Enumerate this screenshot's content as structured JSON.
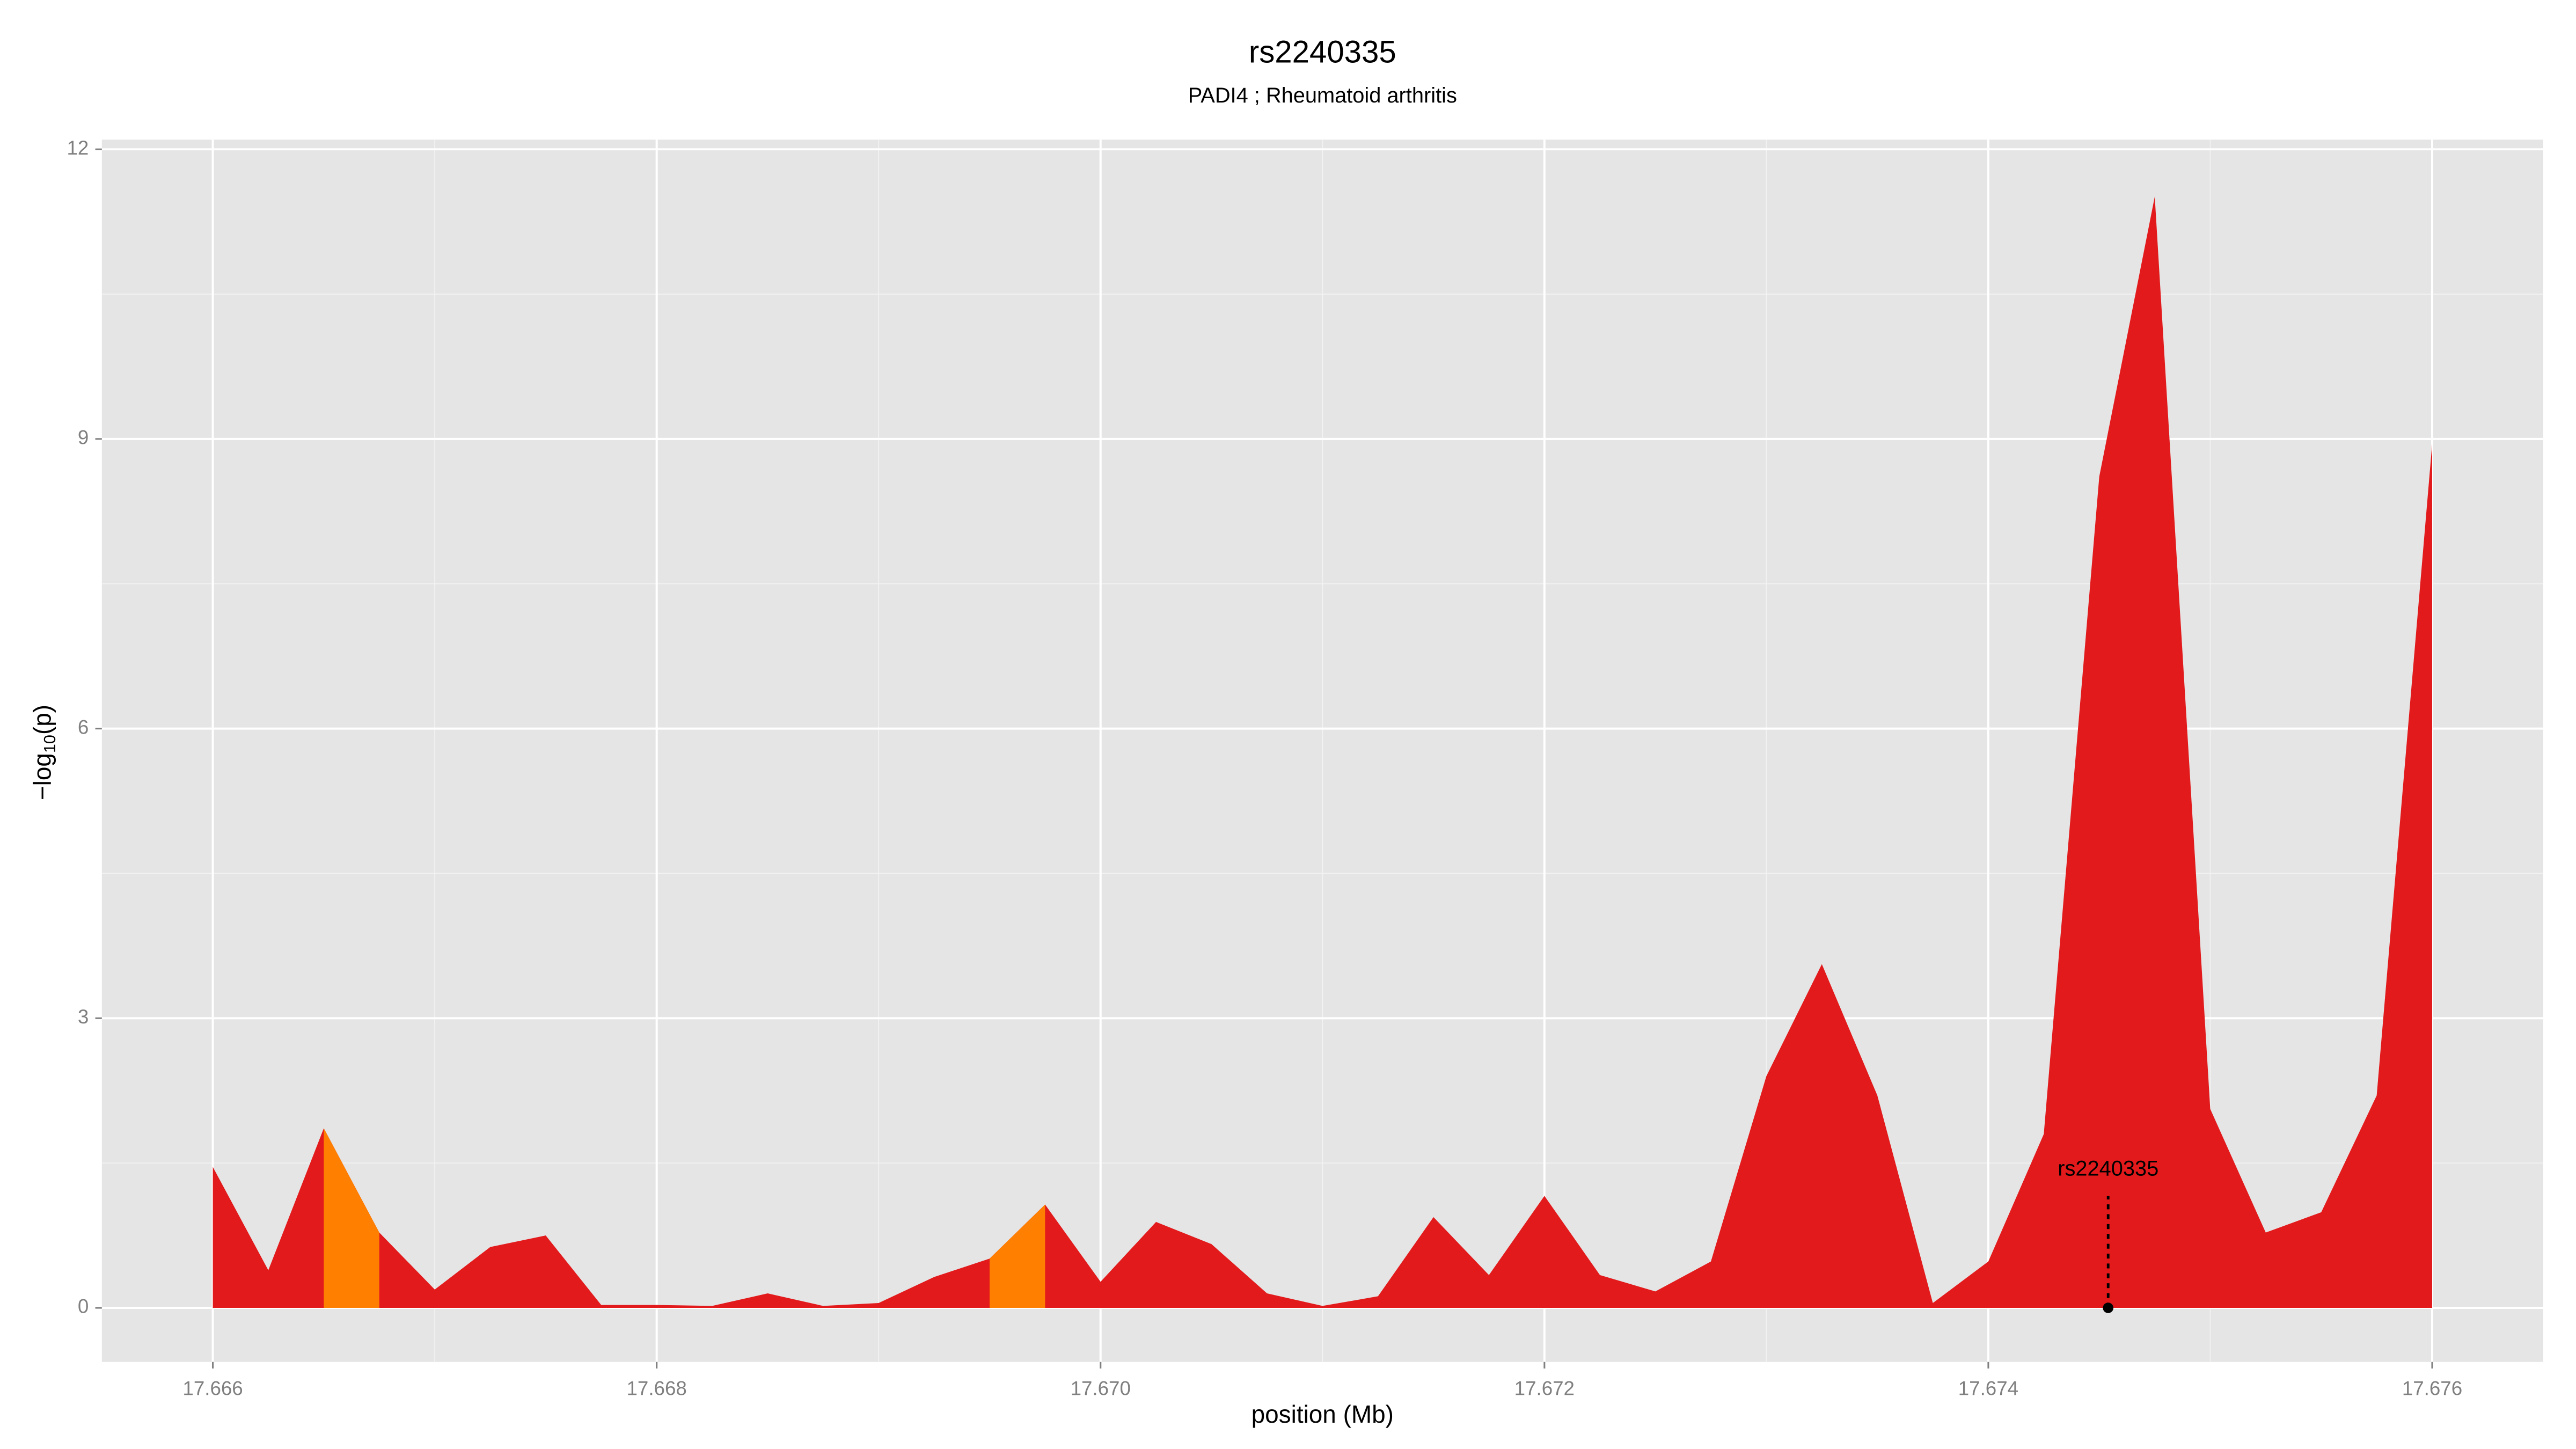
{
  "chart_data": {
    "type": "area",
    "title": "rs2240335",
    "subtitle": "PADI4 ; Rheumatoid arthritis",
    "xlabel": "position (Mb)",
    "ylabel_parts": [
      "−log",
      "10",
      "(p)"
    ],
    "x": [
      17.666,
      17.66625,
      17.6665,
      17.66675,
      17.667,
      17.66725,
      17.6675,
      17.66775,
      17.668,
      17.66825,
      17.6685,
      17.66875,
      17.669,
      17.66925,
      17.6695,
      17.66975,
      17.67,
      17.67025,
      17.6705,
      17.67075,
      17.671,
      17.67125,
      17.6715,
      17.67175,
      17.672,
      17.67225,
      17.6725,
      17.67275,
      17.673,
      17.67325,
      17.6735,
      17.67375,
      17.674,
      17.67425,
      17.6745,
      17.67475,
      17.675,
      17.67525,
      17.6755,
      17.67575,
      17.676
    ],
    "values": [
      1.46,
      0.39,
      1.86,
      0.78,
      0.19,
      0.63,
      0.75,
      0.03,
      0.03,
      0.02,
      0.15,
      0.02,
      0.05,
      0.32,
      0.51,
      1.07,
      0.27,
      0.89,
      0.66,
      0.15,
      0.02,
      0.12,
      0.94,
      0.34,
      1.16,
      0.34,
      0.17,
      0.48,
      2.4,
      3.56,
      2.2,
      0.05,
      0.48,
      1.8,
      8.61,
      11.51,
      2.06,
      0.78,
      0.99,
      2.2,
      8.95
    ],
    "color": "#e31a1c",
    "highlight": {
      "color": "#ff7f00",
      "ranges": [
        [
          17.6665,
          17.66675
        ],
        [
          17.6695,
          17.66975
        ]
      ]
    },
    "marker": {
      "label": "rs2240335",
      "x": 17.67454,
      "y": 0
    },
    "xlim": [
      17.6655,
      17.6765
    ],
    "ylim": [
      -0.56,
      12.1
    ],
    "xticks": [
      17.666,
      17.668,
      {
        "value": 17.67,
        "label": "17.670"
      },
      17.672,
      17.674,
      17.676
    ],
    "yticks": [
      0,
      3,
      6,
      9,
      12
    ],
    "minor_xticks": [
      17.667,
      17.669,
      17.671,
      17.673,
      17.675
    ],
    "minor_yticks": [
      1.5,
      4.5,
      7.5,
      10.5
    ],
    "grid": true
  }
}
